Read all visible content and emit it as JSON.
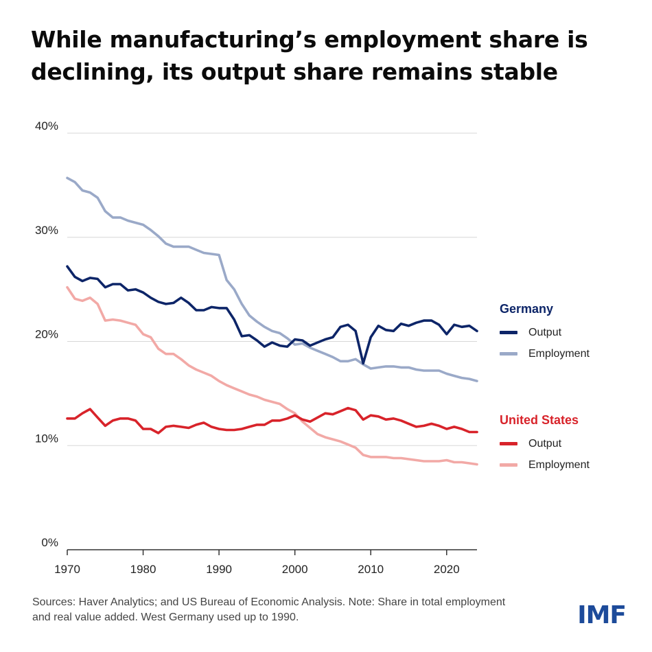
{
  "title": {
    "line1": "While manufacturing’s employment share is",
    "line2": "declining, its output share remains stable"
  },
  "legend": {
    "germany": {
      "title": "Germany",
      "output_label": "Output",
      "employment_label": "Employment"
    },
    "united_states": {
      "title": "United States",
      "output_label": "Output",
      "employment_label": "Employment"
    }
  },
  "colors": {
    "germany_output": "#0d2568",
    "germany_employment": "#9aa9c8",
    "us_output": "#d8232a",
    "us_employment": "#f2a9a6",
    "germany_title": "#0d2568",
    "us_title": "#d8232a",
    "gridline": "#d7d7d7",
    "axis": "#333333",
    "logo": "#1d4b9a"
  },
  "source": "Sources: Haver Analytics; and US Bureau of Economic Analysis. Note: Share in total employment and real value added. West Germany used up to 1990.",
  "logo": "IMF",
  "chart_data": {
    "type": "line",
    "title": "While manufacturing’s employment share is declining, its output share remains stable",
    "xlabel": "",
    "ylabel": "",
    "xlim": [
      1970,
      2024
    ],
    "ylim": [
      0,
      40
    ],
    "x_ticks": [
      1970,
      1980,
      1990,
      2000,
      2010,
      2020
    ],
    "x_tick_labels": [
      "1970",
      "1980",
      "1990",
      "2000",
      "2010",
      "2020"
    ],
    "y_ticks": [
      0,
      10,
      20,
      30,
      40
    ],
    "y_tick_labels": [
      "0%",
      "10%",
      "20%",
      "30%",
      "40%"
    ],
    "grid": "horizontal",
    "legend_position": "right",
    "x": [
      1970,
      1971,
      1972,
      1973,
      1974,
      1975,
      1976,
      1977,
      1978,
      1979,
      1980,
      1981,
      1982,
      1983,
      1984,
      1985,
      1986,
      1987,
      1988,
      1989,
      1990,
      1991,
      1992,
      1993,
      1994,
      1995,
      1996,
      1997,
      1998,
      1999,
      2000,
      2001,
      2002,
      2003,
      2004,
      2005,
      2006,
      2007,
      2008,
      2009,
      2010,
      2011,
      2012,
      2013,
      2014,
      2015,
      2016,
      2017,
      2018,
      2019,
      2020,
      2021,
      2022,
      2023,
      2024
    ],
    "series": [
      {
        "name": "Germany Output",
        "key": "germany_output",
        "values": [
          27.2,
          26.2,
          25.8,
          26.1,
          26.0,
          25.2,
          25.5,
          25.5,
          24.9,
          25.0,
          24.7,
          24.2,
          23.8,
          23.6,
          23.7,
          24.2,
          23.7,
          23.0,
          23.0,
          23.3,
          23.2,
          23.2,
          22.1,
          20.5,
          20.6,
          20.1,
          19.5,
          19.9,
          19.6,
          19.5,
          20.2,
          20.1,
          19.6,
          19.9,
          20.2,
          20.4,
          21.4,
          21.6,
          21.0,
          17.9,
          20.4,
          21.5,
          21.1,
          21.0,
          21.7,
          21.5,
          21.8,
          22.0,
          22.0,
          21.6,
          20.7,
          21.6,
          21.4,
          21.5,
          21.0
        ]
      },
      {
        "name": "Germany Employment",
        "key": "germany_employment",
        "values": [
          35.7,
          35.3,
          34.5,
          34.3,
          33.8,
          32.5,
          31.9,
          31.9,
          31.6,
          31.4,
          31.2,
          30.7,
          30.1,
          29.4,
          29.1,
          29.1,
          29.1,
          28.8,
          28.5,
          28.4,
          28.3,
          25.9,
          25.0,
          23.6,
          22.5,
          21.9,
          21.4,
          21.0,
          20.8,
          20.3,
          19.7,
          19.8,
          19.4,
          19.1,
          18.8,
          18.5,
          18.1,
          18.1,
          18.3,
          17.8,
          17.4,
          17.5,
          17.6,
          17.6,
          17.5,
          17.5,
          17.3,
          17.2,
          17.2,
          17.2,
          16.9,
          16.7,
          16.5,
          16.4,
          16.2
        ]
      },
      {
        "name": "United States Output",
        "key": "us_output",
        "values": [
          12.6,
          12.6,
          13.1,
          13.5,
          12.7,
          11.9,
          12.4,
          12.6,
          12.6,
          12.4,
          11.6,
          11.6,
          11.2,
          11.8,
          11.9,
          11.8,
          11.7,
          12.0,
          12.2,
          11.8,
          11.6,
          11.5,
          11.5,
          11.6,
          11.8,
          12.0,
          12.0,
          12.4,
          12.4,
          12.6,
          12.9,
          12.5,
          12.3,
          12.7,
          13.1,
          13.0,
          13.3,
          13.6,
          13.4,
          12.5,
          12.9,
          12.8,
          12.5,
          12.6,
          12.4,
          12.1,
          11.8,
          11.9,
          12.1,
          11.9,
          11.6,
          11.8,
          11.6,
          11.3,
          11.3
        ]
      },
      {
        "name": "United States Employment",
        "key": "us_employment",
        "values": [
          25.2,
          24.1,
          23.9,
          24.2,
          23.6,
          22.0,
          22.1,
          22.0,
          21.8,
          21.6,
          20.7,
          20.4,
          19.3,
          18.8,
          18.8,
          18.3,
          17.7,
          17.3,
          17.0,
          16.7,
          16.2,
          15.8,
          15.5,
          15.2,
          14.9,
          14.7,
          14.4,
          14.2,
          14.0,
          13.5,
          13.1,
          12.3,
          11.7,
          11.1,
          10.8,
          10.6,
          10.4,
          10.1,
          9.8,
          9.1,
          8.9,
          8.9,
          8.9,
          8.8,
          8.8,
          8.7,
          8.6,
          8.5,
          8.5,
          8.5,
          8.6,
          8.4,
          8.4,
          8.3,
          8.2
        ]
      }
    ]
  }
}
